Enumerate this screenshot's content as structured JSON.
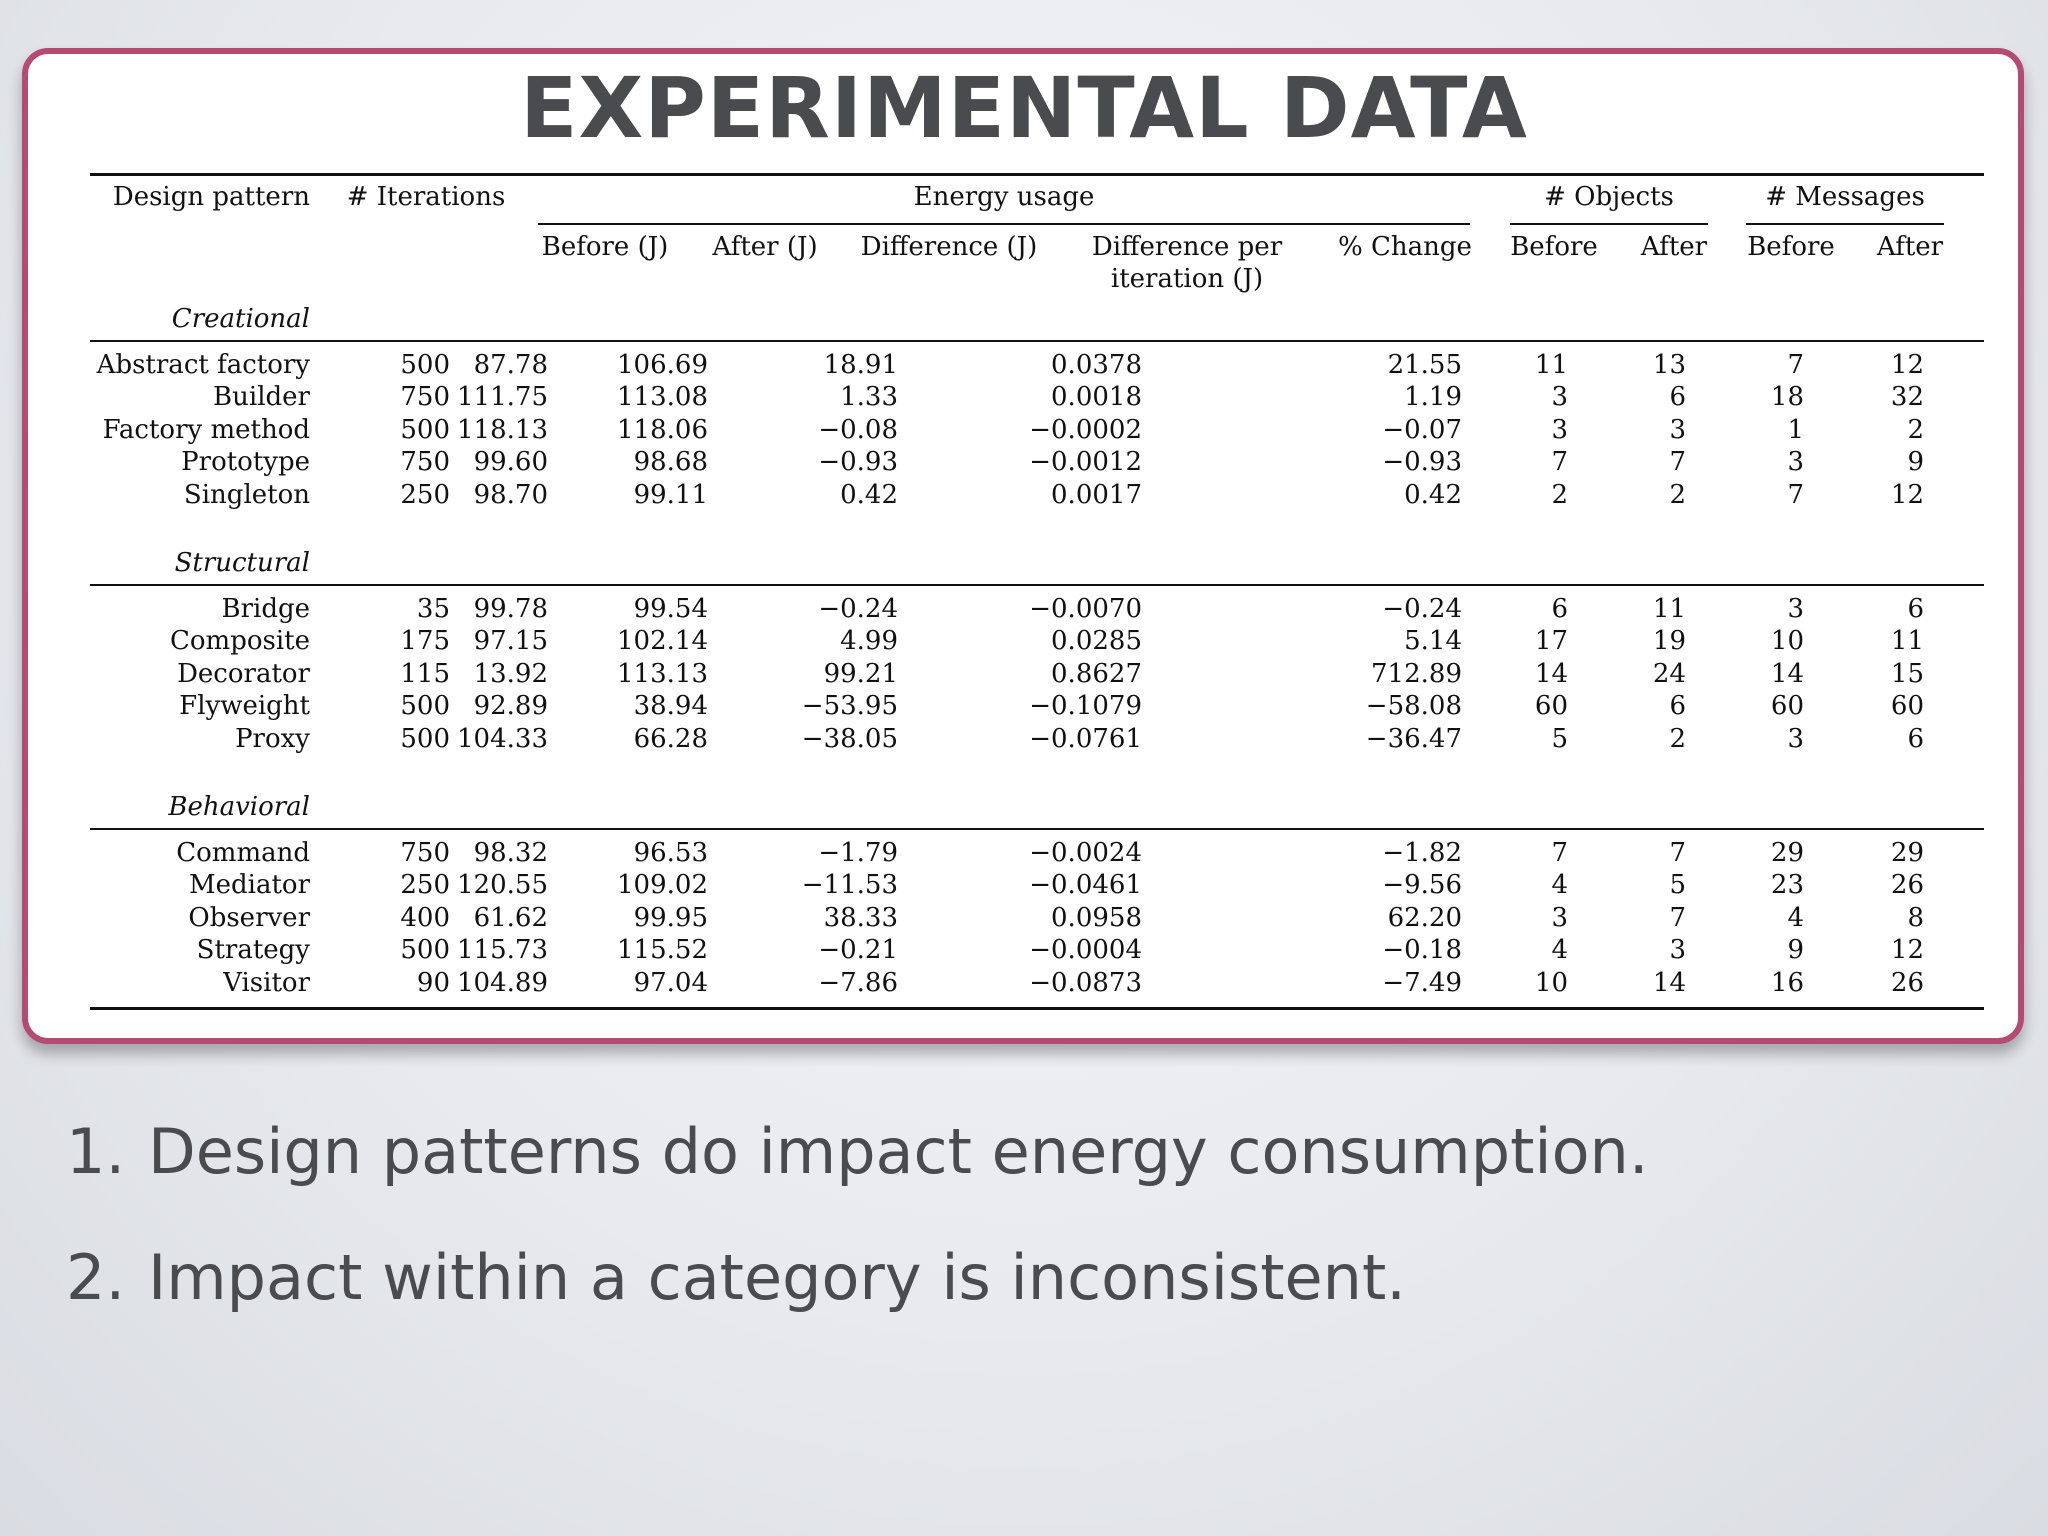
{
  "slide": {
    "title": "EXPERIMENTAL DATA",
    "bullets": [
      {
        "num": "1.",
        "text": "Design patterns do impact energy consumption."
      },
      {
        "num": "2.",
        "text": "Impact within a category is inconsistent."
      }
    ],
    "border_color": "#b54a72",
    "title_color": "#4a4b4f"
  },
  "table": {
    "headers": {
      "design_pattern": "Design pattern",
      "iterations": "# Iterations",
      "energy_usage": "Energy usage",
      "objects": "# Objects",
      "messages": "# Messages",
      "before_j": "Before (J)",
      "after_j": "After (J)",
      "difference_j": "Difference (J)",
      "diff_per_iter_1": "Difference per",
      "diff_per_iter_2": "iteration (J)",
      "pct_change": "% Change",
      "before": "Before",
      "after": "After"
    },
    "groups": [
      {
        "name": "Creational",
        "rows": [
          [
            "Abstract factory",
            "500",
            "87.78",
            "106.69",
            "18.91",
            "0.0378",
            "21.55",
            "11",
            "13",
            "7",
            "12"
          ],
          [
            "Builder",
            "750",
            "111.75",
            "113.08",
            "1.33",
            "0.0018",
            "1.19",
            "3",
            "6",
            "18",
            "32"
          ],
          [
            "Factory method",
            "500",
            "118.13",
            "118.06",
            "−0.08",
            "−0.0002",
            "−0.07",
            "3",
            "3",
            "1",
            "2"
          ],
          [
            "Prototype",
            "750",
            "99.60",
            "98.68",
            "−0.93",
            "−0.0012",
            "−0.93",
            "7",
            "7",
            "3",
            "9"
          ],
          [
            "Singleton",
            "250",
            "98.70",
            "99.11",
            "0.42",
            "0.0017",
            "0.42",
            "2",
            "2",
            "7",
            "12"
          ]
        ]
      },
      {
        "name": "Structural",
        "rows": [
          [
            "Bridge",
            "35",
            "99.78",
            "99.54",
            "−0.24",
            "−0.0070",
            "−0.24",
            "6",
            "11",
            "3",
            "6"
          ],
          [
            "Composite",
            "175",
            "97.15",
            "102.14",
            "4.99",
            "0.0285",
            "5.14",
            "17",
            "19",
            "10",
            "11"
          ],
          [
            "Decorator",
            "115",
            "13.92",
            "113.13",
            "99.21",
            "0.8627",
            "712.89",
            "14",
            "24",
            "14",
            "15"
          ],
          [
            "Flyweight",
            "500",
            "92.89",
            "38.94",
            "−53.95",
            "−0.1079",
            "−58.08",
            "60",
            "6",
            "60",
            "60"
          ],
          [
            "Proxy",
            "500",
            "104.33",
            "66.28",
            "−38.05",
            "−0.0761",
            "−36.47",
            "5",
            "2",
            "3",
            "6"
          ]
        ]
      },
      {
        "name": "Behavioral",
        "rows": [
          [
            "Command",
            "750",
            "98.32",
            "96.53",
            "−1.79",
            "−0.0024",
            "−1.82",
            "7",
            "7",
            "29",
            "29"
          ],
          [
            "Mediator",
            "250",
            "120.55",
            "109.02",
            "−11.53",
            "−0.0461",
            "−9.56",
            "4",
            "5",
            "23",
            "26"
          ],
          [
            "Observer",
            "400",
            "61.62",
            "99.95",
            "38.33",
            "0.0958",
            "62.20",
            "3",
            "7",
            "4",
            "8"
          ],
          [
            "Strategy",
            "500",
            "115.73",
            "115.52",
            "−0.21",
            "−0.0004",
            "−0.18",
            "4",
            "3",
            "9",
            "12"
          ],
          [
            "Visitor",
            "90",
            "104.89",
            "97.04",
            "−7.86",
            "−0.0873",
            "−7.49",
            "10",
            "14",
            "16",
            "26"
          ]
        ]
      }
    ]
  }
}
